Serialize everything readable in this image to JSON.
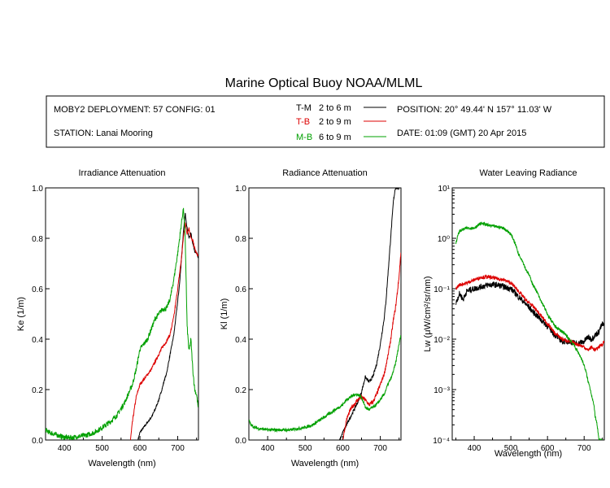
{
  "figure": {
    "title": "Marine Optical Buoy NOAA/MLML"
  },
  "info_box": {
    "deployment": "MOBY2 DEPLOYMENT: 57 CONFIG: 01",
    "station": "STATION: Lanai Mooring",
    "position": "POSITION: 20° 49.44' N   157° 11.03' W",
    "date": "DATE: 01:09 (GMT) 20 Apr 2015",
    "legend": [
      {
        "code": "T-M",
        "range": "2 to 6  m",
        "color": "#000000"
      },
      {
        "code": "T-B",
        "range": "2 to 9  m",
        "color": "#dd0000"
      },
      {
        "code": "M-B",
        "range": "6 to 9  m",
        "color": "#00a000"
      }
    ]
  },
  "chart_data": [
    {
      "type": "line",
      "title": "Irradiance Attenuation",
      "xlabel": "Wavelength (nm)",
      "ylabel": "Ke  (1/m)",
      "xlim": [
        350,
        755
      ],
      "ylim": [
        0,
        1.0
      ],
      "yscale": "linear",
      "xticks": [
        400,
        500,
        600,
        700
      ],
      "yticks": [
        0.0,
        0.2,
        0.4,
        0.6,
        0.8,
        1.0
      ],
      "ytick_labels": [
        "0.0",
        "0.2",
        "0.4",
        "0.6",
        "0.8",
        "1.0"
      ],
      "series": [
        {
          "name": "T-M",
          "color": "#000000",
          "noise": 0.004,
          "x": [
            595,
            600,
            610,
            620,
            630,
            640,
            650,
            660,
            665,
            670,
            680,
            690,
            700,
            705,
            710,
            715,
            720,
            725,
            730,
            735,
            740,
            745,
            750,
            755
          ],
          "y": [
            0.0,
            0.03,
            0.05,
            0.07,
            0.09,
            0.12,
            0.16,
            0.21,
            0.24,
            0.26,
            0.34,
            0.42,
            0.55,
            0.62,
            0.72,
            0.82,
            0.9,
            0.84,
            0.8,
            0.82,
            0.78,
            0.75,
            0.74,
            0.72
          ]
        },
        {
          "name": "T-B",
          "color": "#dd0000",
          "noise": 0.006,
          "x": [
            575,
            580,
            590,
            600,
            610,
            620,
            630,
            640,
            650,
            660,
            670,
            680,
            690,
            700,
            705,
            710,
            715,
            720,
            725,
            730,
            735,
            740,
            745,
            750,
            755
          ],
          "y": [
            0.0,
            0.07,
            0.17,
            0.22,
            0.24,
            0.26,
            0.28,
            0.31,
            0.34,
            0.37,
            0.39,
            0.42,
            0.49,
            0.6,
            0.66,
            0.72,
            0.8,
            0.86,
            0.82,
            0.84,
            0.8,
            0.79,
            0.76,
            0.74,
            0.73
          ]
        },
        {
          "name": "M-B",
          "color": "#00a000",
          "noise": 0.01,
          "x": [
            350,
            360,
            380,
            400,
            420,
            440,
            460,
            480,
            500,
            520,
            540,
            560,
            580,
            590,
            600,
            610,
            620,
            630,
            640,
            650,
            660,
            665,
            670,
            680,
            690,
            700,
            705,
            710,
            715,
            720,
            725,
            730,
            735,
            740,
            745,
            750,
            755
          ],
          "y": [
            0.04,
            0.03,
            0.02,
            0.01,
            0.01,
            0.015,
            0.02,
            0.03,
            0.05,
            0.07,
            0.1,
            0.15,
            0.22,
            0.28,
            0.36,
            0.38,
            0.4,
            0.44,
            0.48,
            0.5,
            0.52,
            0.52,
            0.52,
            0.56,
            0.64,
            0.74,
            0.8,
            0.86,
            0.92,
            0.8,
            0.45,
            0.35,
            0.4,
            0.28,
            0.2,
            0.18,
            0.12
          ]
        }
      ]
    },
    {
      "type": "line",
      "title": "Radiance Attenuation",
      "xlabel": "Wavelength (nm)",
      "ylabel": "Kl  (1/m)",
      "xlim": [
        350,
        755
      ],
      "ylim": [
        0,
        1.0
      ],
      "yscale": "linear",
      "xticks": [
        400,
        500,
        600,
        700
      ],
      "yticks": [
        0.0,
        0.2,
        0.4,
        0.6,
        0.8,
        1.0
      ],
      "ytick_labels": [
        "0.0",
        "0.2",
        "0.4",
        "0.6",
        "0.8",
        "1.0"
      ],
      "series": [
        {
          "name": "T-M",
          "color": "#000000",
          "noise": 0.006,
          "x": [
            592,
            600,
            610,
            620,
            630,
            640,
            650,
            660,
            670,
            680,
            690,
            700,
            710,
            715,
            720,
            725,
            730,
            735,
            740,
            745,
            750
          ],
          "y": [
            0.0,
            0.03,
            0.06,
            0.09,
            0.12,
            0.15,
            0.19,
            0.25,
            0.23,
            0.25,
            0.3,
            0.38,
            0.48,
            0.55,
            0.65,
            0.75,
            0.85,
            0.95,
            1.0,
            1.0,
            1.0
          ]
        },
        {
          "name": "T-B",
          "color": "#dd0000",
          "noise": 0.008,
          "x": [
            600,
            610,
            620,
            630,
            640,
            650,
            660,
            670,
            680,
            690,
            700,
            710,
            720,
            730,
            735,
            740,
            745,
            750,
            755
          ],
          "y": [
            0.0,
            0.08,
            0.12,
            0.14,
            0.16,
            0.17,
            0.16,
            0.14,
            0.15,
            0.18,
            0.22,
            0.26,
            0.33,
            0.42,
            0.48,
            0.52,
            0.58,
            0.65,
            0.75
          ]
        },
        {
          "name": "M-B",
          "color": "#00a000",
          "noise": 0.006,
          "x": [
            350,
            355,
            365,
            380,
            400,
            420,
            440,
            460,
            480,
            500,
            520,
            540,
            560,
            580,
            600,
            610,
            620,
            630,
            640,
            650,
            655,
            660,
            670,
            680,
            690,
            700,
            710,
            720,
            730,
            740,
            750,
            755
          ],
          "y": [
            0.08,
            0.06,
            0.05,
            0.045,
            0.04,
            0.04,
            0.04,
            0.04,
            0.045,
            0.05,
            0.06,
            0.08,
            0.1,
            0.12,
            0.14,
            0.16,
            0.17,
            0.18,
            0.18,
            0.17,
            0.15,
            0.13,
            0.12,
            0.13,
            0.14,
            0.16,
            0.18,
            0.22,
            0.25,
            0.3,
            0.38,
            0.42
          ]
        }
      ]
    },
    {
      "type": "line",
      "title": "Water Leaving Radiance",
      "xlabel": "Wavelength (nm)",
      "ylabel": "Lw  (μW/cm²/sr/nm)",
      "xlim": [
        340,
        755
      ],
      "ylim": [
        0.0001,
        10
      ],
      "yscale": "log",
      "xticks": [
        400,
        500,
        600,
        700
      ],
      "yticks": [
        0.0001,
        0.001,
        0.01,
        0.1,
        1,
        10
      ],
      "ytick_labels": [
        "10⁻⁴",
        "10⁻³",
        "10⁻²",
        "10⁻¹",
        "10⁰",
        "10¹"
      ],
      "series": [
        {
          "name": "T-M",
          "color": "#000000",
          "noise": 0.06,
          "x": [
            350,
            360,
            370,
            380,
            400,
            420,
            440,
            460,
            480,
            500,
            520,
            540,
            560,
            580,
            600,
            620,
            640,
            660,
            680,
            700,
            710,
            720,
            730,
            740,
            750,
            755
          ],
          "y": [
            0.05,
            0.08,
            0.06,
            0.09,
            0.1,
            0.11,
            0.12,
            0.12,
            0.11,
            0.1,
            0.07,
            0.05,
            0.035,
            0.025,
            0.018,
            0.012,
            0.009,
            0.009,
            0.008,
            0.009,
            0.011,
            0.01,
            0.012,
            0.014,
            0.02,
            0.018
          ]
        },
        {
          "name": "T-B",
          "color": "#dd0000",
          "noise": 0.035,
          "x": [
            350,
            360,
            380,
            400,
            420,
            440,
            460,
            480,
            500,
            520,
            540,
            560,
            580,
            600,
            620,
            640,
            660,
            680,
            700,
            710,
            720,
            730,
            740,
            750,
            755
          ],
          "y": [
            0.1,
            0.12,
            0.13,
            0.15,
            0.17,
            0.17,
            0.16,
            0.15,
            0.13,
            0.09,
            0.06,
            0.045,
            0.03,
            0.02,
            0.013,
            0.01,
            0.009,
            0.008,
            0.007,
            0.006,
            0.007,
            0.006,
            0.007,
            0.008,
            0.009
          ]
        },
        {
          "name": "M-B",
          "color": "#00a000",
          "noise": 0.03,
          "x": [
            350,
            360,
            380,
            400,
            420,
            440,
            460,
            480,
            500,
            520,
            540,
            560,
            580,
            600,
            620,
            640,
            660,
            680,
            700,
            710,
            720,
            730,
            740,
            750
          ],
          "y": [
            0.8,
            1.4,
            1.6,
            1.6,
            2.0,
            1.8,
            1.7,
            1.6,
            1.2,
            0.5,
            0.25,
            0.12,
            0.06,
            0.03,
            0.018,
            0.014,
            0.01,
            0.006,
            0.003,
            0.0015,
            0.0008,
            0.0003,
            0.0001,
            0.0001
          ]
        }
      ]
    }
  ]
}
